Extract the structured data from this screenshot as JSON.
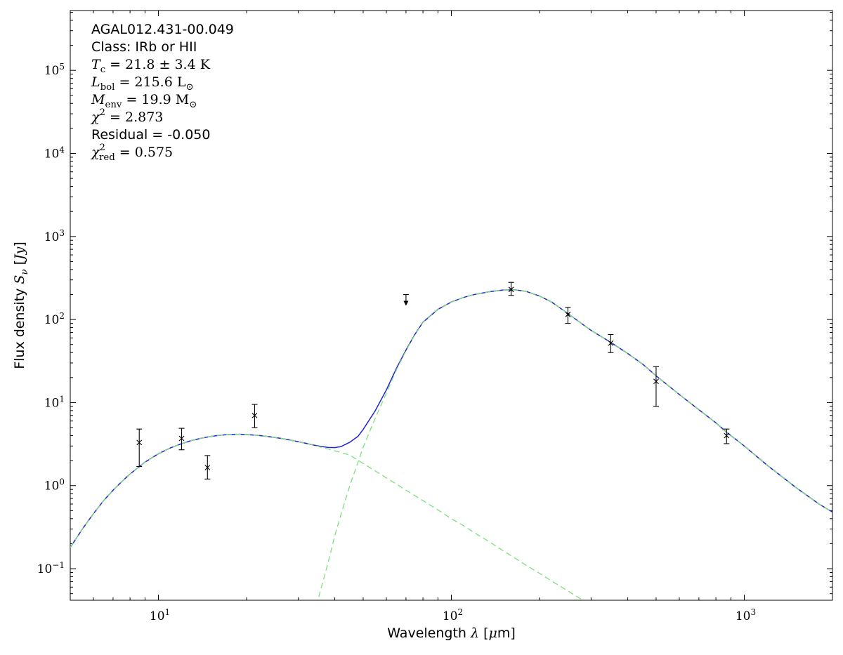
{
  "figure": {
    "background": "#ffffff",
    "annotations": [
      {
        "font": "sans",
        "parts": [
          {
            "t": "AGAL012.431-00.049"
          }
        ]
      },
      {
        "font": "sans",
        "parts": [
          {
            "t": "Class: IRb or HII"
          }
        ]
      },
      {
        "font": "serif",
        "parts": [
          {
            "t": "T",
            "it": 1
          },
          {
            "t": "c",
            "sub": 1
          },
          {
            "t": " = 21.8 ± 3.4 K"
          }
        ]
      },
      {
        "font": "serif",
        "parts": [
          {
            "t": "L",
            "it": 1
          },
          {
            "t": "bol",
            "sub": 1
          },
          {
            "t": " = 215.6 L"
          },
          {
            "t": "⊙",
            "sub": 1
          }
        ]
      },
      {
        "font": "serif",
        "parts": [
          {
            "t": "M",
            "it": 1
          },
          {
            "t": "env",
            "sub": 1
          },
          {
            "t": " = 19.9 M"
          },
          {
            "t": "⊙",
            "sub": 1
          }
        ]
      },
      {
        "font": "serif",
        "parts": [
          {
            "t": "χ",
            "it": 1
          },
          {
            "t": "2",
            "sup": 1
          },
          {
            "t": " = 2.873"
          }
        ]
      },
      {
        "font": "sans",
        "parts": [
          {
            "t": "Residual = -0.050"
          }
        ]
      },
      {
        "font": "serif",
        "parts": [
          {
            "t": "χ",
            "it": 1
          },
          {
            "t": "2",
            "sup": 1
          },
          {
            "t": "red",
            "sub": 1,
            "dx": -9
          },
          {
            "t": " = 0.575"
          }
        ]
      }
    ]
  },
  "chart_data": {
    "type": "line",
    "title": "",
    "xscale": "log",
    "yscale": "log",
    "xlim": [
      5,
      2000
    ],
    "ylim": [
      0.0417,
      524807
    ],
    "grid": false,
    "xtick_exponents": [
      1,
      2,
      3
    ],
    "ytick_exponents": [
      -1,
      0,
      1,
      2,
      3,
      4,
      5
    ],
    "xlabel_parts": [
      {
        "t": "Wavelength "
      },
      {
        "t": "λ",
        "it": 1,
        "ff": "serif"
      },
      {
        "t": " ["
      },
      {
        "t": "μ",
        "it": 1,
        "ff": "serif"
      },
      {
        "t": "m]"
      }
    ],
    "ylabel_parts": [
      {
        "t": "Flux density "
      },
      {
        "t": "S",
        "it": 1,
        "ff": "serif"
      },
      {
        "t": "ν",
        "sub": 1,
        "it": 1,
        "ff": "serif"
      },
      {
        "t": " ["
      },
      {
        "t": "Jy",
        "it": 1,
        "ff": "serif"
      },
      {
        "t": "]"
      }
    ],
    "colors": {
      "model": "#2323cf",
      "component": "#7cdf7c",
      "data": "#000000"
    },
    "series": [
      {
        "name": "total-model-fit",
        "color": "#2323cf",
        "style": "solid",
        "width": 1.5,
        "points": [
          [
            5,
            0.18
          ],
          [
            5.5,
            0.3
          ],
          [
            6,
            0.46
          ],
          [
            6.5,
            0.66
          ],
          [
            7,
            0.88
          ],
          [
            7.5,
            1.12
          ],
          [
            8,
            1.38
          ],
          [
            9,
            1.92
          ],
          [
            10,
            2.42
          ],
          [
            11,
            2.85
          ],
          [
            12,
            3.2
          ],
          [
            13,
            3.5
          ],
          [
            14,
            3.72
          ],
          [
            15,
            3.9
          ],
          [
            16,
            4.02
          ],
          [
            17,
            4.1
          ],
          [
            18,
            4.14
          ],
          [
            19,
            4.15
          ],
          [
            20,
            4.12
          ],
          [
            22,
            4.02
          ],
          [
            24,
            3.88
          ],
          [
            26,
            3.72
          ],
          [
            28,
            3.55
          ],
          [
            30,
            3.38
          ],
          [
            32,
            3.22
          ],
          [
            34,
            3.07
          ],
          [
            36,
            2.96
          ],
          [
            38,
            2.88
          ],
          [
            40,
            2.87
          ],
          [
            42,
            2.95
          ],
          [
            45,
            3.33
          ],
          [
            48,
            3.92
          ],
          [
            50,
            4.75
          ],
          [
            55,
            8.0
          ],
          [
            60,
            14.2
          ],
          [
            65,
            26.0
          ],
          [
            70,
            42.9
          ],
          [
            75,
            65.8
          ],
          [
            80,
            92.7
          ],
          [
            90,
            132.5
          ],
          [
            100,
            162.4
          ],
          [
            110,
            184.3
          ],
          [
            120,
            200.3
          ],
          [
            135,
            216.2
          ],
          [
            150,
            226.2
          ],
          [
            165,
            228.1
          ],
          [
            180,
            218.1
          ],
          [
            200,
            192.1
          ],
          [
            220,
            162.1
          ],
          [
            250,
            118.1
          ],
          [
            280,
            88.0
          ],
          [
            300,
            74.0
          ],
          [
            350,
            53.1
          ],
          [
            400,
            39.0
          ],
          [
            450,
            29.0
          ],
          [
            500,
            21.0
          ],
          [
            600,
            12.5
          ],
          [
            700,
            8.2
          ],
          [
            800,
            5.7
          ],
          [
            870,
            4.4
          ],
          [
            1000,
            3.0
          ],
          [
            1200,
            1.75
          ],
          [
            1500,
            0.95
          ],
          [
            1800,
            0.6
          ],
          [
            2000,
            0.48
          ]
        ]
      },
      {
        "name": "warm-component",
        "color": "#7cdf7c",
        "style": "dashed",
        "width": 1.3,
        "points": [
          [
            5,
            0.18
          ],
          [
            5.5,
            0.3
          ],
          [
            6,
            0.46
          ],
          [
            6.5,
            0.66
          ],
          [
            7,
            0.88
          ],
          [
            7.5,
            1.12
          ],
          [
            8,
            1.38
          ],
          [
            9,
            1.92
          ],
          [
            10,
            2.42
          ],
          [
            11,
            2.85
          ],
          [
            12,
            3.2
          ],
          [
            13,
            3.5
          ],
          [
            14,
            3.72
          ],
          [
            15,
            3.9
          ],
          [
            16,
            4.02
          ],
          [
            17,
            4.1
          ],
          [
            18,
            4.14
          ],
          [
            19,
            4.15
          ],
          [
            20,
            4.12
          ],
          [
            22,
            4.02
          ],
          [
            24,
            3.88
          ],
          [
            26,
            3.72
          ],
          [
            28,
            3.55
          ],
          [
            30,
            3.38
          ],
          [
            32,
            3.22
          ],
          [
            34,
            3.06
          ],
          [
            36,
            2.9
          ],
          [
            38,
            2.76
          ],
          [
            40,
            2.62
          ],
          [
            42,
            2.5
          ],
          [
            45,
            2.33
          ],
          [
            48,
            2.02
          ],
          [
            50,
            1.85
          ],
          [
            55,
            1.5
          ],
          [
            60,
            1.24
          ],
          [
            65,
            1.04
          ],
          [
            70,
            0.88
          ],
          [
            75,
            0.76
          ],
          [
            80,
            0.66
          ],
          [
            90,
            0.51
          ],
          [
            100,
            0.4
          ],
          [
            110,
            0.33
          ],
          [
            120,
            0.27
          ],
          [
            135,
            0.21
          ],
          [
            150,
            0.165
          ],
          [
            165,
            0.134
          ],
          [
            180,
            0.11
          ],
          [
            200,
            0.088
          ],
          [
            220,
            0.071
          ],
          [
            250,
            0.054
          ],
          [
            280,
            0.042
          ],
          [
            300,
            0.036
          ],
          [
            320,
            0.031
          ]
        ]
      },
      {
        "name": "cold-envelope-component",
        "color": "#7cdf7c",
        "style": "dashed",
        "width": 1.3,
        "points": [
          [
            34,
            0.028
          ],
          [
            36,
            0.06
          ],
          [
            38,
            0.12
          ],
          [
            40,
            0.25
          ],
          [
            42,
            0.45
          ],
          [
            45,
            1.0
          ],
          [
            48,
            1.9
          ],
          [
            50,
            2.9
          ],
          [
            55,
            6.5
          ],
          [
            60,
            13
          ],
          [
            65,
            25
          ],
          [
            70,
            42
          ],
          [
            75,
            65
          ],
          [
            80,
            92
          ],
          [
            90,
            132
          ],
          [
            100,
            162
          ],
          [
            110,
            184
          ],
          [
            120,
            200
          ],
          [
            135,
            216
          ],
          [
            150,
            226
          ],
          [
            165,
            228
          ],
          [
            180,
            218
          ],
          [
            200,
            192
          ],
          [
            220,
            162
          ],
          [
            250,
            118
          ],
          [
            280,
            88
          ],
          [
            300,
            74
          ],
          [
            350,
            53
          ],
          [
            400,
            39
          ],
          [
            450,
            29
          ],
          [
            500,
            21
          ],
          [
            600,
            12.5
          ],
          [
            700,
            8.2
          ],
          [
            800,
            5.7
          ],
          [
            870,
            4.4
          ],
          [
            1000,
            3.0
          ],
          [
            1200,
            1.75
          ],
          [
            1500,
            0.95
          ],
          [
            1800,
            0.6
          ],
          [
            2000,
            0.48
          ]
        ]
      }
    ],
    "data_points": {
      "marker": "x",
      "color": "#000000",
      "points": [
        {
          "x": 8.6,
          "y": 3.3,
          "ylo": 1.7,
          "yhi": 4.8
        },
        {
          "x": 12,
          "y": 3.7,
          "ylo": 2.7,
          "yhi": 4.9
        },
        {
          "x": 14.7,
          "y": 1.65,
          "ylo": 1.2,
          "yhi": 2.3
        },
        {
          "x": 21.3,
          "y": 7.0,
          "ylo": 5.0,
          "yhi": 9.5
        },
        {
          "x": 160,
          "y": 230,
          "ylo": 195,
          "yhi": 280
        },
        {
          "x": 250,
          "y": 115,
          "ylo": 90,
          "yhi": 140
        },
        {
          "x": 350,
          "y": 52,
          "ylo": 40,
          "yhi": 66
        },
        {
          "x": 500,
          "y": 18,
          "ylo": 9,
          "yhi": 27
        },
        {
          "x": 870,
          "y": 4.0,
          "ylo": 3.2,
          "yhi": 4.8
        }
      ]
    },
    "upper_limits": [
      {
        "x": 70,
        "y": 200
      }
    ]
  }
}
